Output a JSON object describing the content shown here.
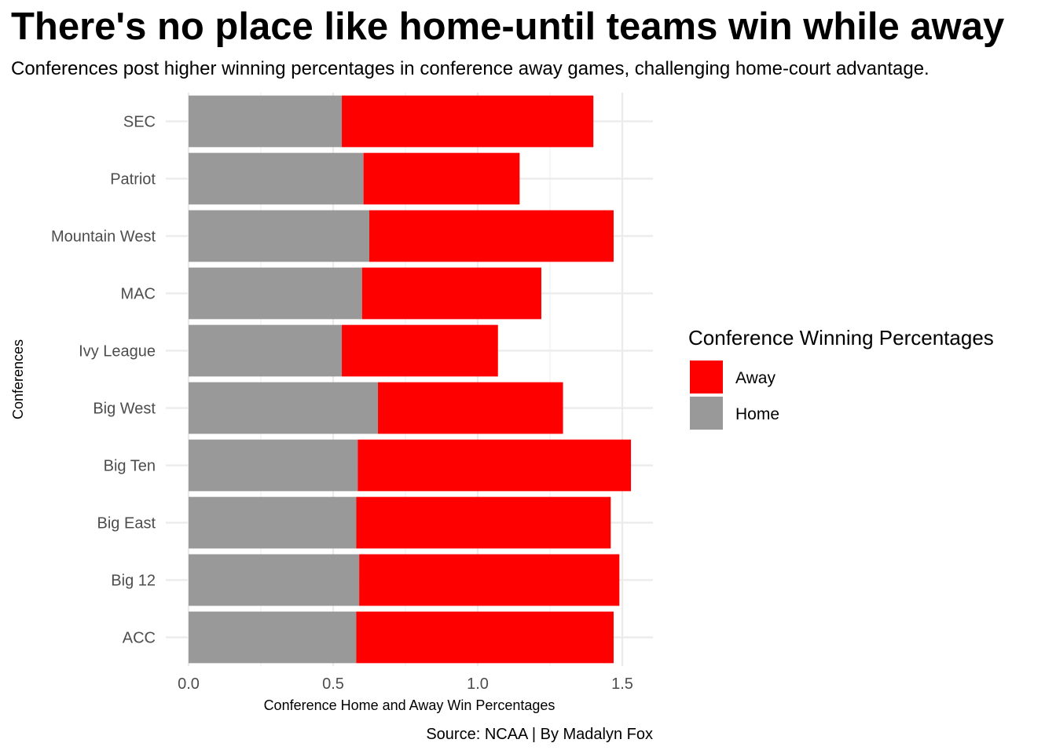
{
  "chart_data": {
    "type": "bar",
    "orientation": "horizontal",
    "stacked": true,
    "title": "There's no place like home-until teams win while away",
    "subtitle": "Conferences post higher winning percentages in conference away games, challenging home-court advantage.",
    "xlabel": "Conference Home and Away Win Percentages",
    "ylabel": "Conferences",
    "caption": "Source: NCAA | By Madalyn Fox",
    "categories": [
      "ACC",
      "Big 12",
      "Big East",
      "Big Ten",
      "Big West",
      "Ivy League",
      "MAC",
      "Mountain West",
      "Patriot",
      "SEC"
    ],
    "series": [
      {
        "name": "Home",
        "color": "#999999",
        "values": [
          0.58,
          0.59,
          0.58,
          0.585,
          0.655,
          0.53,
          0.6,
          0.625,
          0.605,
          0.53
        ]
      },
      {
        "name": "Away",
        "color": "#ff0000",
        "values": [
          0.89,
          0.9,
          0.88,
          0.945,
          0.64,
          0.54,
          0.62,
          0.845,
          0.54,
          0.87
        ]
      }
    ],
    "xlim": [
      0,
      1.6
    ],
    "xticks": [
      0.0,
      0.5,
      1.0,
      1.5
    ],
    "xtick_labels": [
      "0.0",
      "0.5",
      "1.0",
      "1.5"
    ],
    "grid": true,
    "legend": {
      "title": "Conference Winning Percentages",
      "position": "right",
      "entries": [
        "Away",
        "Home"
      ]
    }
  }
}
